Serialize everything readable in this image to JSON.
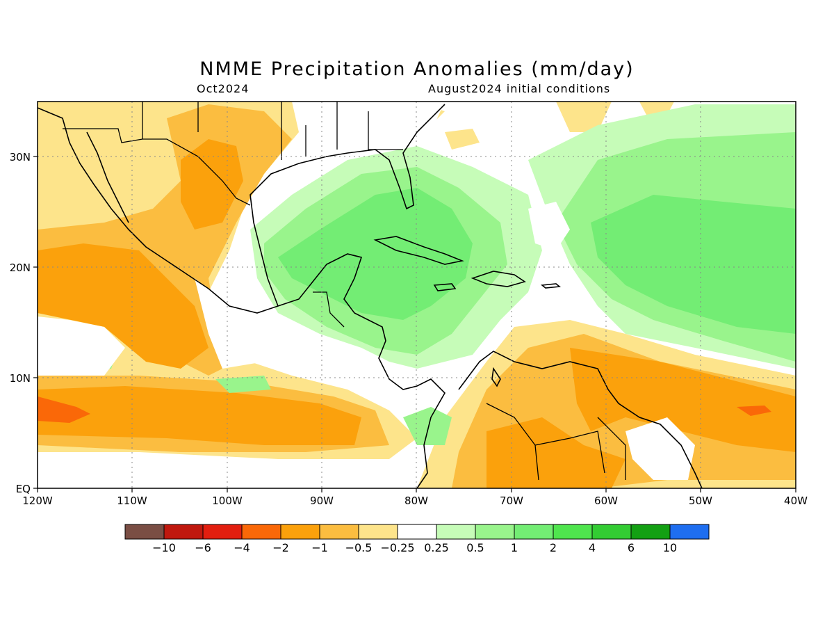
{
  "title": "NMME Precipitation Anomalies (mm/day)",
  "valid_month": "Oct2024",
  "initial_conditions": "August2024 initial conditions",
  "lon_ticks": [
    "120W",
    "110W",
    "100W",
    "90W",
    "80W",
    "70W",
    "60W",
    "50W",
    "40W"
  ],
  "lat_ticks": [
    "EQ",
    "10N",
    "20N",
    "30N"
  ],
  "colorbar": {
    "colors": [
      "#7a4e44",
      "#c0180e",
      "#e21e0f",
      "#fa6808",
      "#fba10c",
      "#fbbd40",
      "#fde48b",
      "#ffffff",
      "#c6fcb8",
      "#99f48c",
      "#73ed74",
      "#4fe54e",
      "#33cc33",
      "#13a013",
      "#1e6ef0"
    ],
    "labels": [
      "−10",
      "−6",
      "−4",
      "−2",
      "−1",
      "−0.5",
      "−0.25",
      "0.25",
      "0.5",
      "1",
      "2",
      "4",
      "6",
      "10"
    ]
  },
  "legend_colors": {
    "strong_negative": "#fba10c",
    "moderate_negative": "#fbbd40",
    "weak_negative": "#fde48b",
    "neutral": "#ffffff",
    "weak_positive": "#c6fcb8",
    "moderate_positive": "#99f48c",
    "strong_positive": "#73ed74",
    "very_negative": "#fa6808"
  }
}
